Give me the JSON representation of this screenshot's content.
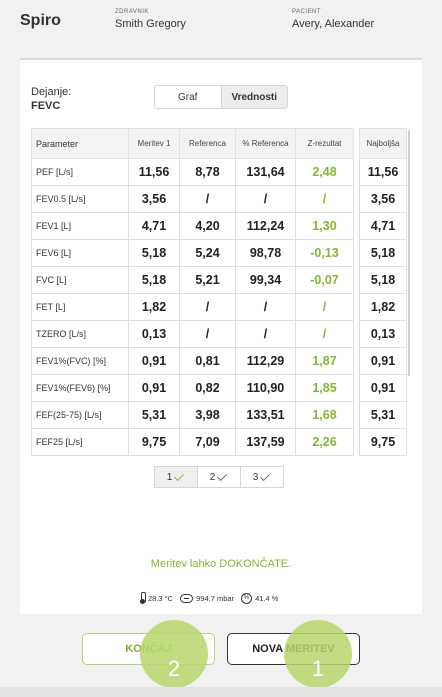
{
  "header": {
    "app_title": "Spiro",
    "doctor_caption": "ZDRAVNIK",
    "doctor_name": "Smith Gregory",
    "patient_caption": "PACIENT",
    "patient_name": "Avery, Alexander"
  },
  "measurement": {
    "label": "Dejanje:",
    "value": "FEVC"
  },
  "view_toggle": {
    "graph": "Graf",
    "values": "Vrednosti",
    "active": "values"
  },
  "table": {
    "columns": [
      "Parameter",
      "Meritev 1",
      "Referenca",
      "% Referenca",
      "Z-rezultat"
    ],
    "best_column": "Najboljša",
    "rows": [
      {
        "param": "PEF [L/s]",
        "m1": "11,56",
        "ref": "8,78",
        "pct": "131,64",
        "z": "2,48",
        "best": "11,56"
      },
      {
        "param": "FEV0.5 [L/s]",
        "m1": "3,56",
        "ref": "/",
        "pct": "/",
        "z": "/",
        "best": "3,56"
      },
      {
        "param": "FEV1 [L]",
        "m1": "4,71",
        "ref": "4,20",
        "pct": "112,24",
        "z": "1,30",
        "best": "4,71"
      },
      {
        "param": "FEV6 [L]",
        "m1": "5,18",
        "ref": "5,24",
        "pct": "98,78",
        "z": "-0,13",
        "best": "5,18"
      },
      {
        "param": "FVC [L]",
        "m1": "5,18",
        "ref": "5,21",
        "pct": "99,34",
        "z": "-0,07",
        "best": "5,18"
      },
      {
        "param": "FET [L]",
        "m1": "1,82",
        "ref": "/",
        "pct": "/",
        "z": "/",
        "best": "1,82"
      },
      {
        "param": "TZERO [L/s]",
        "m1": "0,13",
        "ref": "/",
        "pct": "/",
        "z": "/",
        "best": "0,13"
      },
      {
        "param": "FEV1%(FVC) [%]",
        "m1": "0,91",
        "ref": "0,81",
        "pct": "112,29",
        "z": "1,87",
        "best": "0,91"
      },
      {
        "param": "FEV1%(FEV6) [%]",
        "m1": "0,91",
        "ref": "0,82",
        "pct": "110,90",
        "z": "1,85",
        "best": "0,91"
      },
      {
        "param": "FEF(25-75) [L/s]",
        "m1": "5,31",
        "ref": "3,98",
        "pct": "133,51",
        "z": "1,68",
        "best": "5,31"
      },
      {
        "param": "FEF25 [L/s]",
        "m1": "9,75",
        "ref": "7,09",
        "pct": "137,59",
        "z": "2,26",
        "best": "9,75"
      }
    ]
  },
  "pager": [
    "1",
    "2",
    "3"
  ],
  "status_message": "Meritev lahko DOKONČATE.",
  "environment": {
    "temperature": "28.3 °C",
    "pressure": "994.7 mbar",
    "humidity": "41.4 %"
  },
  "buttons": {
    "finish": "KONČAJ",
    "new_measurement": "NOVA MERITEV"
  },
  "badges": {
    "finish": "2",
    "new_measurement": "1"
  },
  "colors": {
    "accent_green": "#84b730",
    "badge_green": "#b9d66c"
  }
}
